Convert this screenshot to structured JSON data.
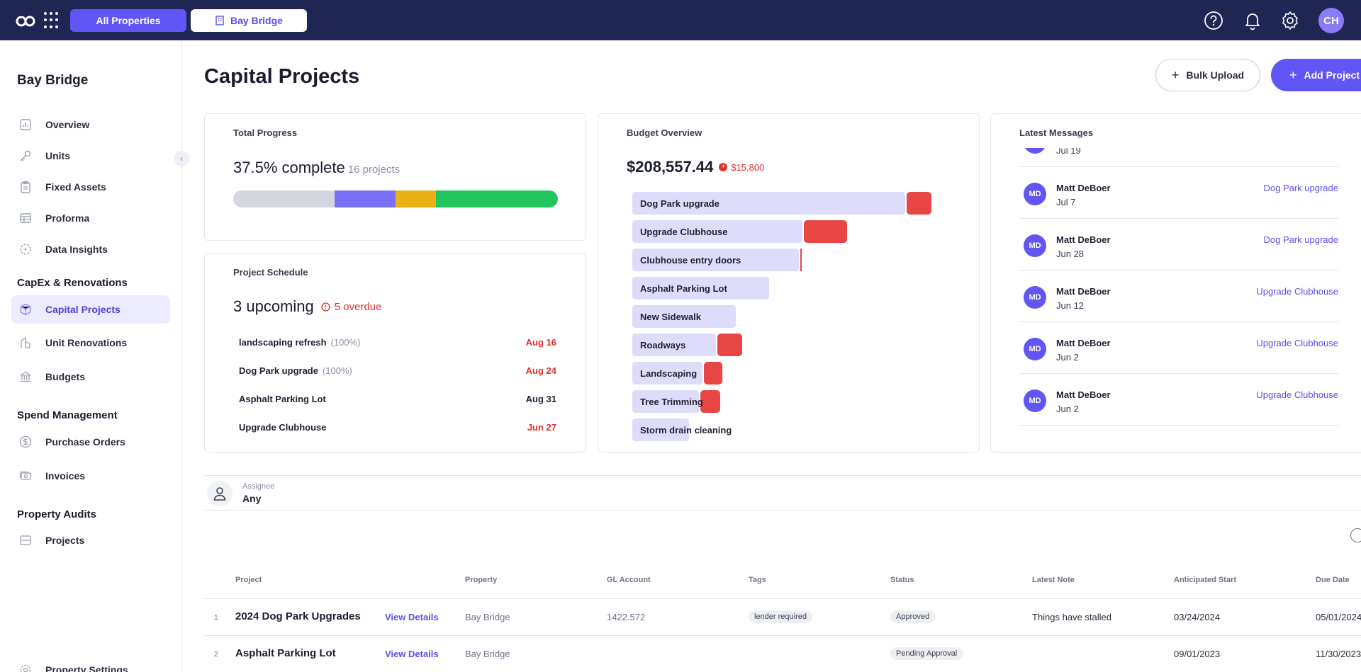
{
  "topbar": {
    "logo_text": "co",
    "all_properties": "All Properties",
    "bay_bridge": "Bay Bridge",
    "avatar": "CH"
  },
  "sidebar": {
    "title": "Bay Bridge",
    "items": [
      {
        "label": "Overview"
      },
      {
        "label": "Units"
      },
      {
        "label": "Fixed Assets"
      },
      {
        "label": "Proforma"
      },
      {
        "label": "Data Insights"
      }
    ],
    "capex_section": "CapEx & Renovations",
    "capex_items": [
      {
        "label": "Capital Projects"
      },
      {
        "label": "Unit Renovations"
      },
      {
        "label": "Budgets"
      }
    ],
    "spend_section": "Spend Management",
    "spend_items": [
      {
        "label": "Purchase Orders"
      },
      {
        "label": "Invoices"
      }
    ],
    "audits_section": "Property Audits",
    "audits_items": [
      {
        "label": "Projects"
      }
    ],
    "settings": "Property Settings"
  },
  "header": {
    "title": "Capital Projects",
    "bulk_upload": "Bulk Upload",
    "add_project": "Add Project"
  },
  "total_progress": {
    "title": "Total Progress",
    "value": "37.5% complete",
    "count": "16 projects",
    "segments": [
      {
        "color": "#d4d6de",
        "fraction": 0.3125
      },
      {
        "color": "#7a6ff7",
        "fraction": 0.1875
      },
      {
        "color": "#ebb014",
        "fraction": 0.125
      },
      {
        "color": "#22c55e",
        "fraction": 0.375
      }
    ]
  },
  "schedule": {
    "title": "Project Schedule",
    "upcoming": "3 upcoming",
    "overdue": "5 overdue",
    "rows": [
      {
        "name": "landscaping refresh",
        "pct": "(100%)",
        "date": "Aug 16",
        "red": true
      },
      {
        "name": "Dog Park upgrade",
        "pct": "(100%)",
        "date": "Aug 24",
        "red": true
      },
      {
        "name": "Asphalt Parking Lot",
        "pct": "",
        "date": "Aug 31",
        "red": false
      },
      {
        "name": "Upgrade Clubhouse",
        "pct": "",
        "date": "Jun 27",
        "red": true
      }
    ]
  },
  "budget": {
    "title": "Budget Overview",
    "total": "$208,557.44",
    "over": "$15,800",
    "rows": [
      {
        "label": "Dog Park upgrade",
        "budget": 0.82,
        "over": 0.075
      },
      {
        "label": "Upgrade Clubhouse",
        "budget": 0.51,
        "over": 0.13
      },
      {
        "label": "Clubhouse entry doors",
        "budget": 0.5,
        "over": 0.005
      },
      {
        "label": "Asphalt Parking Lot",
        "budget": 0.41,
        "over": 0
      },
      {
        "label": "New Sidewalk",
        "budget": 0.31,
        "over": 0
      },
      {
        "label": "Roadways",
        "budget": 0.25,
        "over": 0.075
      },
      {
        "label": "Landscaping",
        "budget": 0.21,
        "over": 0.055
      },
      {
        "label": "Tree Trimming",
        "budget": 0.2,
        "over": 0.06
      },
      {
        "label": "Storm drain cleaning",
        "budget": 0.17,
        "over": 0
      }
    ]
  },
  "messages": {
    "title": "Latest Messages",
    "partial_date": "Jul 19",
    "items": [
      {
        "initials": "MD",
        "name": "Matt DeBoer",
        "date": "Jul 7",
        "project": "Dog Park upgrade"
      },
      {
        "initials": "MD",
        "name": "Matt DeBoer",
        "date": "Jun 28",
        "project": "Dog Park upgrade"
      },
      {
        "initials": "MD",
        "name": "Matt DeBoer",
        "date": "Jun 12",
        "project": "Upgrade Clubhouse"
      },
      {
        "initials": "MD",
        "name": "Matt DeBoer",
        "date": "Jun 2",
        "project": "Upgrade Clubhouse"
      },
      {
        "initials": "MD",
        "name": "Matt DeBoer",
        "date": "Jun 2",
        "project": "Upgrade Clubhouse"
      }
    ]
  },
  "filter": {
    "label": "Assignee",
    "value": "Any"
  },
  "table": {
    "headers": {
      "project": "Project",
      "property": "Property",
      "gl": "GL Account",
      "tags": "Tags",
      "status": "Status",
      "note": "Latest Note",
      "start": "Anticipated Start",
      "due": "Due Date"
    },
    "rows": [
      {
        "num": "1",
        "project": "2024 Dog Park Upgrades",
        "details": "View Details",
        "property": "Bay Bridge",
        "gl": "1422.572",
        "tag": "lender required",
        "status": "Approved",
        "note": "Things have stalled",
        "start": "03/24/2024",
        "due": "05/01/2024"
      },
      {
        "num": "2",
        "project": "Asphalt Parking Lot",
        "details": "View Details",
        "property": "Bay Bridge",
        "gl": "",
        "tag": "",
        "status": "Pending Approval",
        "note": "",
        "start": "09/01/2023",
        "due": "11/30/2023"
      }
    ]
  }
}
